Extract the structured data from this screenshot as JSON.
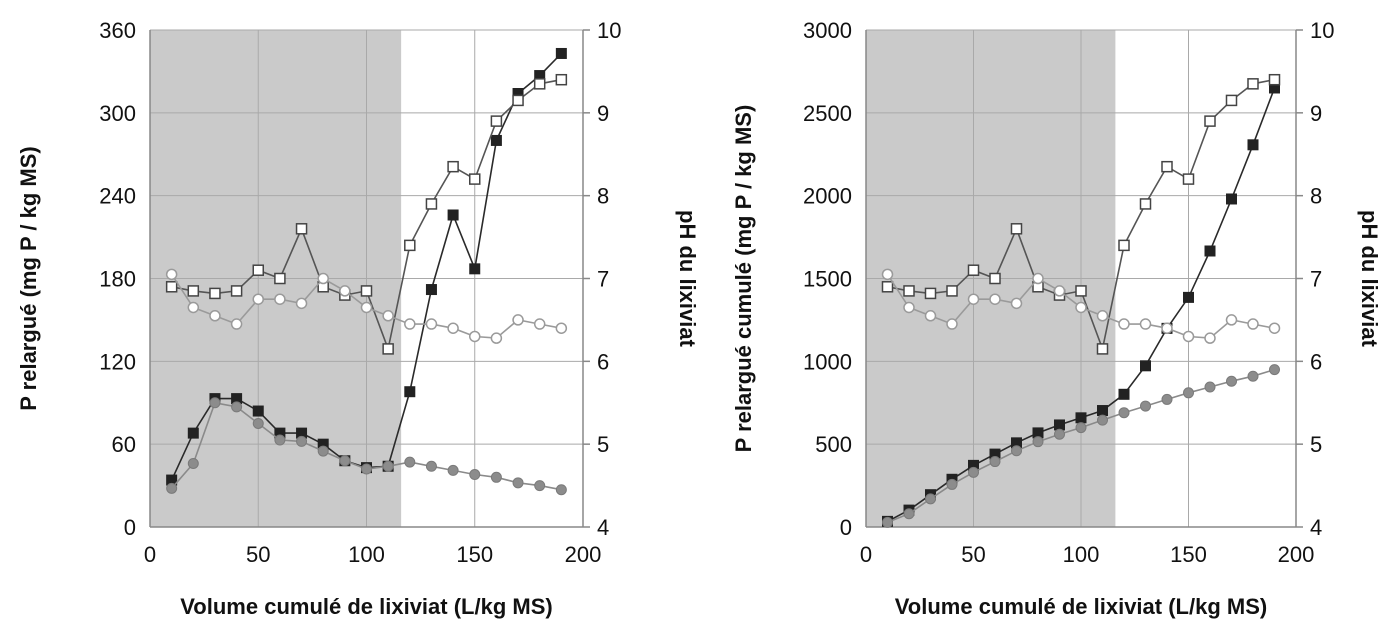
{
  "chart_data": [
    {
      "type": "line",
      "xlabel": "Volume cumulé de lixiviat (L/kg MS)",
      "ylabel": "P relargué (mg P / kg MS)",
      "y2label": "pH du lixiviat",
      "xlim": [
        0,
        200
      ],
      "ylim": [
        0,
        360
      ],
      "y2lim": [
        4,
        10
      ],
      "xticks": [
        "0",
        "50",
        "100",
        "150",
        "200"
      ],
      "yticks": [
        "0",
        "60",
        "120",
        "180",
        "240",
        "300",
        "360"
      ],
      "y2ticks": [
        "4",
        "5",
        "6",
        "7",
        "8",
        "9",
        "10"
      ],
      "shaded_region": [
        0,
        116
      ],
      "grid": true,
      "series": [
        {
          "axis": "left",
          "marker": "filled-square",
          "color": "#2a2a2a",
          "x": [
            10,
            20,
            30,
            40,
            50,
            60,
            70,
            80,
            90,
            100,
            110,
            120,
            130,
            140,
            150,
            160,
            170,
            180,
            190
          ],
          "y": [
            34,
            68,
            93,
            93,
            84,
            68,
            68,
            60,
            48,
            43,
            44,
            98,
            172,
            226,
            187,
            280,
            314,
            327,
            343
          ]
        },
        {
          "axis": "left",
          "marker": "filled-circle",
          "color": "#8a8a8a",
          "x": [
            10,
            20,
            30,
            40,
            50,
            60,
            70,
            80,
            90,
            100,
            110,
            120,
            130,
            140,
            150,
            160,
            170,
            180,
            190
          ],
          "y": [
            28,
            46,
            90,
            87,
            75,
            63,
            62,
            55,
            48,
            42,
            44,
            47,
            44,
            41,
            38,
            36,
            32,
            30,
            27
          ]
        },
        {
          "axis": "right",
          "marker": "open-square",
          "color": "#555555",
          "x": [
            10,
            20,
            30,
            40,
            50,
            60,
            70,
            80,
            90,
            100,
            110,
            120,
            130,
            140,
            150,
            160,
            170,
            180,
            190
          ],
          "y": [
            6.9,
            6.85,
            6.82,
            6.85,
            7.1,
            7.0,
            7.6,
            6.9,
            6.8,
            6.85,
            6.15,
            7.4,
            7.9,
            8.35,
            8.2,
            8.9,
            9.15,
            9.35,
            9.4
          ]
        },
        {
          "axis": "right",
          "marker": "open-circle",
          "color": "#9a9a9a",
          "x": [
            10,
            20,
            30,
            40,
            50,
            60,
            70,
            80,
            90,
            100,
            110,
            120,
            130,
            140,
            150,
            160,
            170,
            180,
            190
          ],
          "y": [
            7.05,
            6.65,
            6.55,
            6.45,
            6.75,
            6.75,
            6.7,
            7.0,
            6.85,
            6.65,
            6.55,
            6.45,
            6.45,
            6.4,
            6.3,
            6.28,
            6.5,
            6.45,
            6.4
          ]
        }
      ]
    },
    {
      "type": "line",
      "xlabel": "Volume cumulé de lixiviat (L/kg MS)",
      "ylabel": "P relargué cumulé (mg P / kg MS)",
      "y2label": "pH du lixiviat",
      "xlim": [
        0,
        200
      ],
      "ylim": [
        0,
        3000
      ],
      "y2lim": [
        4,
        10
      ],
      "xticks": [
        "0",
        "50",
        "100",
        "150",
        "200"
      ],
      "yticks": [
        "0",
        "500",
        "1000",
        "1500",
        "2000",
        "2500",
        "3000"
      ],
      "y2ticks": [
        "4",
        "5",
        "6",
        "7",
        "8",
        "9",
        "10"
      ],
      "shaded_region": [
        0,
        116
      ],
      "grid": true,
      "series": [
        {
          "axis": "left",
          "marker": "filled-square",
          "color": "#2a2a2a",
          "x": [
            10,
            20,
            30,
            40,
            50,
            60,
            70,
            80,
            90,
            100,
            110,
            120,
            130,
            140,
            150,
            160,
            170,
            180,
            190
          ],
          "y": [
            34,
            102,
            195,
            288,
            372,
            440,
            508,
            568,
            616,
            659,
            703,
            801,
            973,
            1199,
            1386,
            1666,
            1980,
            2307,
            2650
          ]
        },
        {
          "axis": "left",
          "marker": "filled-circle",
          "color": "#8a8a8a",
          "x": [
            10,
            20,
            30,
            40,
            50,
            60,
            70,
            80,
            90,
            100,
            110,
            120,
            130,
            140,
            150,
            160,
            170,
            180,
            190
          ],
          "y": [
            28,
            80,
            170,
            257,
            330,
            395,
            460,
            515,
            560,
            600,
            645,
            690,
            730,
            770,
            810,
            845,
            880,
            910,
            950
          ]
        },
        {
          "axis": "right",
          "marker": "open-square",
          "color": "#555555",
          "x": [
            10,
            20,
            30,
            40,
            50,
            60,
            70,
            80,
            90,
            100,
            110,
            120,
            130,
            140,
            150,
            160,
            170,
            180,
            190
          ],
          "y": [
            6.9,
            6.85,
            6.82,
            6.85,
            7.1,
            7.0,
            7.6,
            6.9,
            6.8,
            6.85,
            6.15,
            7.4,
            7.9,
            8.35,
            8.2,
            8.9,
            9.15,
            9.35,
            9.4
          ]
        },
        {
          "axis": "right",
          "marker": "open-circle",
          "color": "#9a9a9a",
          "x": [
            10,
            20,
            30,
            40,
            50,
            60,
            70,
            80,
            90,
            100,
            110,
            120,
            130,
            140,
            150,
            160,
            170,
            180,
            190
          ],
          "y": [
            7.05,
            6.65,
            6.55,
            6.45,
            6.75,
            6.75,
            6.7,
            7.0,
            6.85,
            6.65,
            6.55,
            6.45,
            6.45,
            6.4,
            6.3,
            6.28,
            6.5,
            6.45,
            6.4
          ]
        }
      ]
    }
  ]
}
